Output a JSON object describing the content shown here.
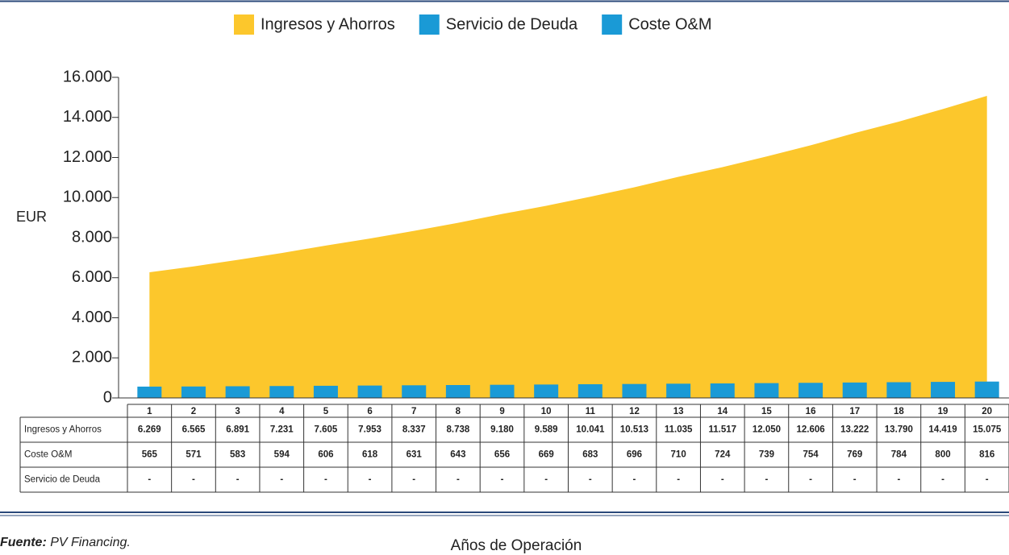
{
  "chart_data": {
    "type": "combo",
    "ylabel": "EUR",
    "xlabel": "Años de Operación",
    "source_label": "Fuente:",
    "source": "PV Financing.",
    "categories": [
      "1",
      "2",
      "3",
      "4",
      "5",
      "6",
      "7",
      "8",
      "9",
      "10",
      "11",
      "12",
      "13",
      "14",
      "15",
      "16",
      "17",
      "18",
      "19",
      "20"
    ],
    "series": [
      {
        "name": "Ingresos y Ahorros",
        "color": "#fcc72c",
        "mark": "area",
        "values": [
          6269,
          6565,
          6891,
          7231,
          7605,
          7953,
          8337,
          8738,
          9180,
          9589,
          10041,
          10513,
          11035,
          11517,
          12050,
          12606,
          13222,
          13790,
          14419,
          15075
        ],
        "value_labels": [
          "6.269",
          "6.565",
          "6.891",
          "7.231",
          "7.605",
          "7.953",
          "8.337",
          "8.738",
          "9.180",
          "9.589",
          "10.041",
          "10.513",
          "11.035",
          "11.517",
          "12.050",
          "12.606",
          "13.222",
          "13.790",
          "14.419",
          "15.075"
        ]
      },
      {
        "name": "Servicio de Deuda",
        "color": "#1a9ad6",
        "mark": "bar",
        "values": [
          null,
          null,
          null,
          null,
          null,
          null,
          null,
          null,
          null,
          null,
          null,
          null,
          null,
          null,
          null,
          null,
          null,
          null,
          null,
          null
        ],
        "value_labels": [
          "-",
          "-",
          "-",
          "-",
          "-",
          "-",
          "-",
          "-",
          "-",
          "-",
          "-",
          "-",
          "-",
          "-",
          "-",
          "-",
          "-",
          "-",
          "-",
          "-"
        ]
      },
      {
        "name": "Coste O&M",
        "color": "#1a9ad6",
        "mark": "bar",
        "values": [
          565,
          571,
          583,
          594,
          606,
          618,
          631,
          643,
          656,
          669,
          683,
          696,
          710,
          724,
          739,
          754,
          769,
          784,
          800,
          816
        ]
      }
    ],
    "ylim": [
      0,
      16000
    ],
    "yticks": [
      0,
      {
        "value": 2000,
        "label": "2.000"
      },
      {
        "value": 4000,
        "label": "4.000"
      },
      {
        "value": 6000,
        "label": "6.000"
      },
      {
        "value": 8000,
        "label": "8.000"
      },
      {
        "value": 10000,
        "label": "10.000"
      },
      {
        "value": 12000,
        "label": "12.000"
      },
      {
        "value": 14000,
        "label": "14.000"
      },
      {
        "value": 16000,
        "label": "16.000"
      }
    ]
  }
}
